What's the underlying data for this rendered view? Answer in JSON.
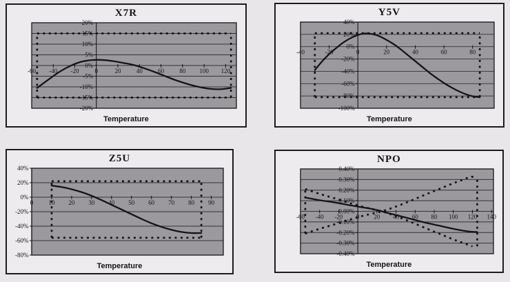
{
  "colors": {
    "page_bg": "#e8e6e9",
    "panel_bg": "#edebee",
    "plot_bg": "#9b999d",
    "grid": "#333336",
    "axis": "#141414",
    "line": "#141414",
    "text": "#141414"
  },
  "chart_data": [
    {
      "id": "x7r",
      "type": "line",
      "title": "X7R",
      "xlabel": "Temperature",
      "xlim": [
        -60,
        130
      ],
      "ylim": [
        -20,
        20
      ],
      "xticks": [
        -60,
        -40,
        -20,
        0,
        20,
        40,
        60,
        80,
        100,
        120
      ],
      "ytick_values": [
        20,
        15,
        10,
        5,
        0,
        -5,
        -10,
        -15,
        -20
      ],
      "ytick_labels": [
        "20%",
        "15%",
        "10%",
        "5%",
        "0%",
        "-5%",
        "-10%",
        "-15%",
        "-20%"
      ],
      "grid": true,
      "legend": "none",
      "curve": [
        [
          -55,
          -10.5
        ],
        [
          -45,
          -6.8
        ],
        [
          -35,
          -3.2
        ],
        [
          -25,
          -0.4
        ],
        [
          -15,
          1.6
        ],
        [
          -5,
          2.5
        ],
        [
          5,
          2.6
        ],
        [
          15,
          2.1
        ],
        [
          25,
          1.2
        ],
        [
          35,
          0.2
        ],
        [
          45,
          -1.4
        ],
        [
          55,
          -3.2
        ],
        [
          65,
          -5.2
        ],
        [
          75,
          -7.1
        ],
        [
          85,
          -8.7
        ],
        [
          95,
          -10.0
        ],
        [
          105,
          -10.9
        ],
        [
          115,
          -11.1
        ],
        [
          125,
          -10.5
        ]
      ],
      "limits": [
        {
          "name": "upper-limit",
          "smooth": false,
          "points": [
            [
              -55,
              15
            ],
            [
              125,
              15
            ]
          ]
        },
        {
          "name": "lower-limit",
          "smooth": false,
          "points": [
            [
              -55,
              -15
            ],
            [
              125,
              -15
            ]
          ]
        },
        {
          "name": "left-limit",
          "smooth": false,
          "points": [
            [
              -55,
              -15
            ],
            [
              -55,
              15
            ]
          ]
        },
        {
          "name": "right-limit",
          "smooth": false,
          "points": [
            [
              125,
              -15
            ],
            [
              125,
              15
            ]
          ]
        }
      ]
    },
    {
      "id": "y5v",
      "type": "line",
      "title": "Y5V",
      "xlabel": "Temperature",
      "xlim": [
        -40,
        95
      ],
      "ylim": [
        -100,
        40
      ],
      "xticks": [
        -40,
        -20,
        0,
        20,
        40,
        60,
        80
      ],
      "ytick_values": [
        40,
        20,
        0,
        -20,
        -40,
        -60,
        -80,
        -100
      ],
      "ytick_labels": [
        "40%",
        "20%",
        "0%",
        "-20%",
        "-40%",
        "-60%",
        "-80%",
        "-100%"
      ],
      "grid": true,
      "legend": "none",
      "curve": [
        [
          -30,
          -38
        ],
        [
          -25,
          -24
        ],
        [
          -20,
          -12
        ],
        [
          -15,
          -2
        ],
        [
          -10,
          7
        ],
        [
          -5,
          14
        ],
        [
          0,
          19
        ],
        [
          5,
          21.5
        ],
        [
          10,
          20.5
        ],
        [
          15,
          17
        ],
        [
          20,
          11
        ],
        [
          25,
          4
        ],
        [
          30,
          -4.5
        ],
        [
          35,
          -14
        ],
        [
          40,
          -23.5
        ],
        [
          45,
          -33
        ],
        [
          50,
          -42.5
        ],
        [
          55,
          -51
        ],
        [
          60,
          -59
        ],
        [
          65,
          -66
        ],
        [
          70,
          -72
        ],
        [
          75,
          -77
        ],
        [
          80,
          -80.5
        ],
        [
          85,
          -82
        ]
      ],
      "limits": [
        {
          "name": "upper-limit",
          "smooth": false,
          "points": [
            [
              -30,
              22
            ],
            [
              85,
              22
            ]
          ]
        },
        {
          "name": "lower-limit",
          "smooth": false,
          "points": [
            [
              -30,
              -82
            ],
            [
              85,
              -82
            ]
          ]
        },
        {
          "name": "left-limit",
          "smooth": false,
          "points": [
            [
              -30,
              -82
            ],
            [
              -30,
              22
            ]
          ]
        },
        {
          "name": "right-limit",
          "smooth": false,
          "points": [
            [
              85,
              -82
            ],
            [
              85,
              22
            ]
          ]
        }
      ]
    },
    {
      "id": "z5u",
      "type": "line",
      "title": "Z5U",
      "xlabel": "Temperature",
      "xlim": [
        0,
        96
      ],
      "ylim": [
        -80,
        40
      ],
      "xticks": [
        0,
        10,
        20,
        30,
        40,
        50,
        60,
        70,
        80,
        90
      ],
      "ytick_values": [
        40,
        20,
        0,
        -20,
        -40,
        -60,
        -80
      ],
      "ytick_labels": [
        "40%",
        "20%",
        "0%",
        "-20%",
        "-40%",
        "-60%",
        "-80%"
      ],
      "grid": true,
      "legend": "none",
      "curve": [
        [
          10,
          16
        ],
        [
          15,
          14
        ],
        [
          20,
          11
        ],
        [
          25,
          7
        ],
        [
          30,
          2
        ],
        [
          35,
          -4
        ],
        [
          40,
          -10.5
        ],
        [
          45,
          -17
        ],
        [
          50,
          -23.5
        ],
        [
          55,
          -30
        ],
        [
          60,
          -36
        ],
        [
          65,
          -41
        ],
        [
          70,
          -45
        ],
        [
          75,
          -48
        ],
        [
          80,
          -49.5
        ],
        [
          85,
          -49.5
        ]
      ],
      "limits": [
        {
          "name": "upper-limit",
          "smooth": false,
          "points": [
            [
              10,
              22
            ],
            [
              85,
              22
            ]
          ]
        },
        {
          "name": "lower-limit",
          "smooth": false,
          "points": [
            [
              10,
              -56
            ],
            [
              85,
              -56
            ]
          ]
        },
        {
          "name": "left-limit",
          "smooth": false,
          "points": [
            [
              10,
              -56
            ],
            [
              10,
              22
            ]
          ]
        },
        {
          "name": "right-limit",
          "smooth": false,
          "points": [
            [
              85,
              -56
            ],
            [
              85,
              22
            ]
          ]
        }
      ]
    },
    {
      "id": "npo",
      "type": "line",
      "title": "NPO",
      "xlabel": "Temperature",
      "xlim": [
        -60,
        142
      ],
      "ylim": [
        -0.4,
        0.4
      ],
      "xticks": [
        -60,
        -40,
        -20,
        0,
        20,
        40,
        60,
        80,
        100,
        120,
        140
      ],
      "ytick_values": [
        0.4,
        0.3,
        0.2,
        0.1,
        0,
        -0.1,
        -0.2,
        -0.3,
        -0.4
      ],
      "ytick_labels": [
        "0.40%",
        "0.30%",
        "0.20%",
        "0.10%",
        "0.00%",
        "-0.10%",
        "-0.20%",
        "-0.30%",
        "-0.40%"
      ],
      "grid": true,
      "legend": "none",
      "curve": [
        [
          -55,
          0.13
        ],
        [
          -40,
          0.105
        ],
        [
          -25,
          0.085
        ],
        [
          -10,
          0.06
        ],
        [
          0,
          0.045
        ],
        [
          10,
          0.03
        ],
        [
          20,
          0.012
        ],
        [
          30,
          -0.012
        ],
        [
          40,
          -0.035
        ],
        [
          55,
          -0.07
        ],
        [
          70,
          -0.105
        ],
        [
          85,
          -0.135
        ],
        [
          100,
          -0.165
        ],
        [
          110,
          -0.182
        ],
        [
          118,
          -0.192
        ],
        [
          125,
          -0.195
        ]
      ],
      "limits": [
        {
          "name": "upper-tolerance-curve",
          "smooth": true,
          "points": [
            [
              -55,
              0.21
            ],
            [
              -40,
              0.165
            ],
            [
              -25,
              0.125
            ],
            [
              -10,
              0.082
            ],
            [
              0,
              0.056
            ],
            [
              10,
              0.032
            ],
            [
              25,
              0
            ],
            [
              40,
              -0.045
            ],
            [
              55,
              -0.098
            ],
            [
              70,
              -0.155
            ],
            [
              85,
              -0.21
            ],
            [
              100,
              -0.265
            ],
            [
              110,
              -0.298
            ],
            [
              120,
              -0.33
            ]
          ]
        },
        {
          "name": "lower-tolerance-curve",
          "smooth": true,
          "points": [
            [
              -55,
              -0.21
            ],
            [
              -40,
              -0.165
            ],
            [
              -25,
              -0.125
            ],
            [
              -10,
              -0.082
            ],
            [
              0,
              -0.056
            ],
            [
              10,
              -0.032
            ],
            [
              25,
              0
            ],
            [
              40,
              0.045
            ],
            [
              55,
              0.098
            ],
            [
              70,
              0.155
            ],
            [
              85,
              0.21
            ],
            [
              100,
              0.265
            ],
            [
              110,
              0.298
            ],
            [
              118,
              0.325
            ],
            [
              125,
              0.32
            ]
          ]
        },
        {
          "name": "left-limit",
          "smooth": false,
          "points": [
            [
              -55,
              -0.21
            ],
            [
              -55,
              0.21
            ]
          ]
        },
        {
          "name": "right-limit",
          "smooth": false,
          "points": [
            [
              125,
              -0.33
            ],
            [
              125,
              0.33
            ]
          ]
        }
      ]
    }
  ]
}
